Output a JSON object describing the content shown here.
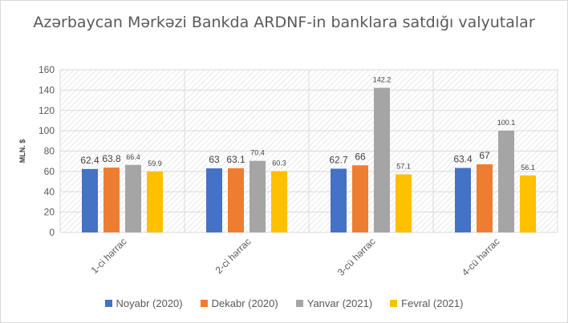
{
  "chart_data": {
    "type": "bar",
    "title": "Azərbaycan Mərkəzi Bankda ARDNF-in banklara satdığı valyutalar",
    "ylabel": "MLN. $",
    "xlabel": "",
    "ylim": [
      0,
      160
    ],
    "yticks": [
      0,
      20,
      40,
      60,
      80,
      100,
      120,
      140,
      160
    ],
    "categories": [
      "1-ci hərrac",
      "2-ci hərrac",
      "3-cü hərrac",
      "4-cü hərrac"
    ],
    "series": [
      {
        "name": "Noyabr (2020)",
        "color": "#4472c4",
        "values": [
          62.4,
          63,
          62.7,
          63.4
        ],
        "labels": [
          "62.4",
          "63",
          "62.7",
          "63.4"
        ]
      },
      {
        "name": "Dekabr (2020)",
        "color": "#ed7d31",
        "values": [
          63.8,
          63.1,
          66,
          67
        ],
        "labels": [
          "63.8",
          "63.1",
          "66",
          "67"
        ]
      },
      {
        "name": "Yanvar (2021)",
        "color": "#a5a5a5",
        "values": [
          66.4,
          70.4,
          142.2,
          100.1
        ],
        "labels": [
          "66.4",
          "70.4",
          "142.2",
          "100.1"
        ]
      },
      {
        "name": "Fevral (2021)",
        "color": "#ffc000",
        "values": [
          59.9,
          60.3,
          57.1,
          56.1
        ],
        "labels": [
          "59.9",
          "60.3",
          "57.1",
          "56.1"
        ]
      }
    ],
    "grid": true,
    "legend_position": "bottom"
  }
}
